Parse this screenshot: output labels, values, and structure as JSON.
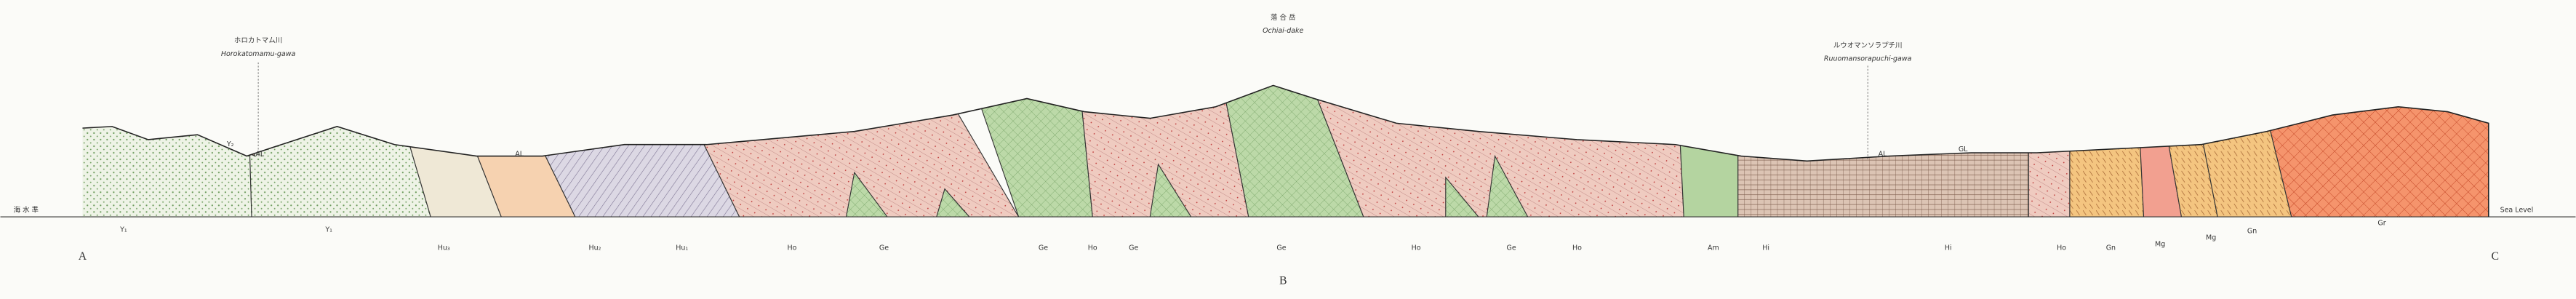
{
  "rivers": [
    {
      "name_ja": "ホロカトマム川",
      "name_en": "Horokatomamu-gawa"
    },
    {
      "name_ja": "ルウオマンソラプチ川",
      "name_en": "Ruuomansorapuchi-gawa"
    }
  ],
  "peak": {
    "name_ja": "落 合 岳",
    "name_en": "Ochiai-dake"
  },
  "sea_level": {
    "ja": "海 水 準",
    "en": "Sea Level"
  },
  "section_points": [
    "A",
    "B",
    "C"
  ],
  "surface_labels": [
    "Y₂",
    "AL",
    "AL",
    "AL",
    "GL"
  ],
  "units": [
    "Y₁",
    "Y₁",
    "Hu₃",
    "Hu₂",
    "Hu₁",
    "Ho",
    "Ge",
    "Ge",
    "Ho",
    "Ge",
    "Ge",
    "Ho",
    "Ge",
    "Ho",
    "Am",
    "Hi",
    "Hi",
    "Ho",
    "Gn",
    "Mg",
    "Mg",
    "Gn",
    "Gr"
  ]
}
